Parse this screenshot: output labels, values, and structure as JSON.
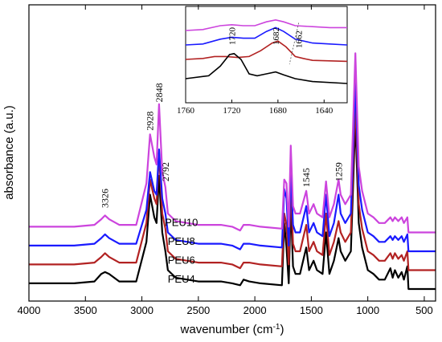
{
  "chart_data": {
    "type": "line",
    "title": "",
    "xlabel": "wavenumber (cm",
    "xlabel_sup": "-1",
    "xlabel_close": ")",
    "ylabel": "absorbance (a.u.)",
    "xlim": [
      4000,
      400
    ],
    "ylim": [
      0,
      100
    ],
    "reversed_x": true,
    "x_ticks": [
      4000,
      3500,
      3000,
      2500,
      2000,
      1500,
      1000,
      500
    ],
    "grid": false,
    "series": [
      {
        "name": "PEU4",
        "color": "#000000",
        "offset": 0,
        "points": [
          [
            4000,
            3
          ],
          [
            3600,
            3
          ],
          [
            3420,
            4
          ],
          [
            3360,
            8
          ],
          [
            3326,
            9
          ],
          [
            3290,
            8
          ],
          [
            3200,
            4
          ],
          [
            3050,
            4
          ],
          [
            2960,
            25
          ],
          [
            2928,
            50
          ],
          [
            2890,
            38
          ],
          [
            2870,
            35
          ],
          [
            2848,
            60
          ],
          [
            2820,
            30
          ],
          [
            2792,
            20
          ],
          [
            2770,
            10
          ],
          [
            2700,
            6
          ],
          [
            2500,
            4
          ],
          [
            2300,
            4
          ],
          [
            2200,
            3
          ],
          [
            2130,
            2
          ],
          [
            2100,
            5
          ],
          [
            2050,
            4
          ],
          [
            1950,
            3
          ],
          [
            1760,
            2
          ],
          [
            1740,
            35
          ],
          [
            1720,
            22
          ],
          [
            1700,
            3
          ],
          [
            1682,
            46
          ],
          [
            1662,
            12
          ],
          [
            1640,
            8
          ],
          [
            1600,
            8
          ],
          [
            1545,
            22
          ],
          [
            1520,
            10
          ],
          [
            1480,
            15
          ],
          [
            1450,
            10
          ],
          [
            1400,
            8
          ],
          [
            1370,
            30
          ],
          [
            1340,
            8
          ],
          [
            1300,
            15
          ],
          [
            1259,
            27
          ],
          [
            1240,
            20
          ],
          [
            1200,
            15
          ],
          [
            1150,
            20
          ],
          [
            1110,
            90
          ],
          [
            1080,
            35
          ],
          [
            1050,
            22
          ],
          [
            1000,
            10
          ],
          [
            950,
            8
          ],
          [
            900,
            5
          ],
          [
            850,
            5
          ],
          [
            800,
            11
          ],
          [
            780,
            6
          ],
          [
            760,
            10
          ],
          [
            730,
            6
          ],
          [
            700,
            9
          ],
          [
            680,
            5
          ],
          [
            650,
            12
          ],
          [
            640,
            0
          ],
          [
            400,
            0
          ]
        ]
      },
      {
        "name": "PEU6",
        "color": "#b22222",
        "offset": 10,
        "points": [
          [
            4000,
            3
          ],
          [
            3600,
            3
          ],
          [
            3420,
            4
          ],
          [
            3360,
            7
          ],
          [
            3326,
            9
          ],
          [
            3290,
            7
          ],
          [
            3200,
            4
          ],
          [
            3050,
            4
          ],
          [
            2960,
            25
          ],
          [
            2928,
            48
          ],
          [
            2890,
            38
          ],
          [
            2870,
            35
          ],
          [
            2848,
            62
          ],
          [
            2820,
            30
          ],
          [
            2792,
            22
          ],
          [
            2770,
            10
          ],
          [
            2700,
            6
          ],
          [
            2500,
            4
          ],
          [
            2300,
            4
          ],
          [
            2200,
            3
          ],
          [
            2130,
            1
          ],
          [
            2100,
            4
          ],
          [
            2050,
            4
          ],
          [
            1950,
            3
          ],
          [
            1760,
            2
          ],
          [
            1740,
            30
          ],
          [
            1720,
            24
          ],
          [
            1700,
            3
          ],
          [
            1682,
            46
          ],
          [
            1662,
            14
          ],
          [
            1640,
            10
          ],
          [
            1600,
            10
          ],
          [
            1545,
            24
          ],
          [
            1520,
            10
          ],
          [
            1480,
            15
          ],
          [
            1450,
            10
          ],
          [
            1400,
            8
          ],
          [
            1370,
            30
          ],
          [
            1340,
            8
          ],
          [
            1300,
            15
          ],
          [
            1259,
            26
          ],
          [
            1240,
            20
          ],
          [
            1200,
            15
          ],
          [
            1150,
            20
          ],
          [
            1110,
            90
          ],
          [
            1080,
            35
          ],
          [
            1050,
            22
          ],
          [
            1000,
            10
          ],
          [
            950,
            8
          ],
          [
            900,
            5
          ],
          [
            850,
            5
          ],
          [
            800,
            9
          ],
          [
            780,
            6
          ],
          [
            760,
            9
          ],
          [
            730,
            6
          ],
          [
            700,
            8
          ],
          [
            680,
            5
          ],
          [
            650,
            10
          ],
          [
            640,
            0
          ],
          [
            400,
            0
          ]
        ]
      },
      {
        "name": "PEU8",
        "color": "#1a1aff",
        "offset": 20,
        "points": [
          [
            4000,
            3
          ],
          [
            3600,
            3
          ],
          [
            3420,
            4
          ],
          [
            3360,
            7
          ],
          [
            3326,
            9
          ],
          [
            3290,
            7
          ],
          [
            3200,
            4
          ],
          [
            3050,
            4
          ],
          [
            2960,
            22
          ],
          [
            2928,
            42
          ],
          [
            2890,
            32
          ],
          [
            2870,
            30
          ],
          [
            2848,
            54
          ],
          [
            2820,
            28
          ],
          [
            2792,
            20
          ],
          [
            2770,
            10
          ],
          [
            2700,
            6
          ],
          [
            2500,
            4
          ],
          [
            2300,
            4
          ],
          [
            2200,
            3
          ],
          [
            2130,
            1
          ],
          [
            2100,
            4
          ],
          [
            2050,
            4
          ],
          [
            1950,
            3
          ],
          [
            1760,
            2
          ],
          [
            1740,
            33
          ],
          [
            1720,
            28
          ],
          [
            1700,
            3
          ],
          [
            1682,
            44
          ],
          [
            1662,
            14
          ],
          [
            1640,
            10
          ],
          [
            1600,
            10
          ],
          [
            1545,
            24
          ],
          [
            1520,
            10
          ],
          [
            1480,
            15
          ],
          [
            1450,
            10
          ],
          [
            1400,
            8
          ],
          [
            1370,
            30
          ],
          [
            1340,
            8
          ],
          [
            1300,
            15
          ],
          [
            1259,
            30
          ],
          [
            1240,
            20
          ],
          [
            1200,
            15
          ],
          [
            1150,
            20
          ],
          [
            1110,
            90
          ],
          [
            1080,
            35
          ],
          [
            1050,
            22
          ],
          [
            1000,
            10
          ],
          [
            950,
            8
          ],
          [
            900,
            5
          ],
          [
            850,
            5
          ],
          [
            800,
            8
          ],
          [
            780,
            6
          ],
          [
            760,
            8
          ],
          [
            730,
            6
          ],
          [
            700,
            8
          ],
          [
            680,
            5
          ],
          [
            650,
            9
          ],
          [
            640,
            0
          ],
          [
            400,
            0
          ]
        ]
      },
      {
        "name": "PEU10",
        "color": "#cc44dd",
        "offset": 30,
        "points": [
          [
            4000,
            3
          ],
          [
            3600,
            3
          ],
          [
            3420,
            4
          ],
          [
            3360,
            7
          ],
          [
            3326,
            9
          ],
          [
            3290,
            7
          ],
          [
            3200,
            4
          ],
          [
            3050,
            4
          ],
          [
            2960,
            26
          ],
          [
            2928,
            52
          ],
          [
            2890,
            40
          ],
          [
            2870,
            36
          ],
          [
            2848,
            68
          ],
          [
            2820,
            32
          ],
          [
            2792,
            24
          ],
          [
            2770,
            10
          ],
          [
            2700,
            6
          ],
          [
            2500,
            4
          ],
          [
            2300,
            4
          ],
          [
            2200,
            3
          ],
          [
            2130,
            1
          ],
          [
            2100,
            4
          ],
          [
            2050,
            4
          ],
          [
            1950,
            3
          ],
          [
            1760,
            2
          ],
          [
            1740,
            28
          ],
          [
            1720,
            26
          ],
          [
            1700,
            3
          ],
          [
            1682,
            46
          ],
          [
            1662,
            14
          ],
          [
            1640,
            10
          ],
          [
            1600,
            10
          ],
          [
            1545,
            22
          ],
          [
            1520,
            10
          ],
          [
            1480,
            15
          ],
          [
            1450,
            10
          ],
          [
            1400,
            8
          ],
          [
            1370,
            27
          ],
          [
            1340,
            8
          ],
          [
            1300,
            15
          ],
          [
            1259,
            28
          ],
          [
            1240,
            20
          ],
          [
            1200,
            15
          ],
          [
            1150,
            20
          ],
          [
            1110,
            95
          ],
          [
            1080,
            35
          ],
          [
            1050,
            22
          ],
          [
            1000,
            10
          ],
          [
            950,
            8
          ],
          [
            900,
            5
          ],
          [
            850,
            5
          ],
          [
            800,
            8
          ],
          [
            780,
            6
          ],
          [
            760,
            8
          ],
          [
            730,
            6
          ],
          [
            700,
            8
          ],
          [
            680,
            5
          ],
          [
            650,
            8
          ],
          [
            640,
            0
          ],
          [
            400,
            0
          ]
        ]
      }
    ],
    "peak_labels": [
      {
        "text": "3326",
        "x": 3326,
        "y": 43
      },
      {
        "text": "2928",
        "x": 2928,
        "y": 84
      },
      {
        "text": "2848",
        "x": 2848,
        "y": 99
      },
      {
        "text": "2792",
        "x": 2792,
        "y": 57
      },
      {
        "text": "1545",
        "x": 1545,
        "y": 54
      },
      {
        "text": "1259",
        "x": 1259,
        "y": 57
      }
    ],
    "inset": {
      "xlim": [
        1760,
        1620
      ],
      "x_ticks": [
        1760,
        1720,
        1680,
        1640
      ],
      "peak_labels": [
        {
          "text": "1720",
          "x": 1720
        },
        {
          "text": "1682",
          "x": 1682
        },
        {
          "text": "1662",
          "x": 1662
        }
      ],
      "series": [
        {
          "name": "PEU10",
          "color": "#cc44dd",
          "points": [
            [
              1760,
              75
            ],
            [
              1745,
              76
            ],
            [
              1730,
              80
            ],
            [
              1720,
              81
            ],
            [
              1710,
              80
            ],
            [
              1700,
              80
            ],
            [
              1690,
              84
            ],
            [
              1682,
              86
            ],
            [
              1675,
              84
            ],
            [
              1665,
              80
            ],
            [
              1650,
              79
            ],
            [
              1635,
              78
            ],
            [
              1620,
              78
            ]
          ]
        },
        {
          "name": "PEU8",
          "color": "#1a1aff",
          "points": [
            [
              1760,
              60
            ],
            [
              1745,
              61
            ],
            [
              1730,
              66
            ],
            [
              1720,
              68
            ],
            [
              1710,
              67
            ],
            [
              1700,
              67
            ],
            [
              1690,
              74
            ],
            [
              1682,
              78
            ],
            [
              1675,
              74
            ],
            [
              1665,
              66
            ],
            [
              1650,
              62
            ],
            [
              1635,
              61
            ],
            [
              1620,
              60
            ]
          ]
        },
        {
          "name": "PEU6",
          "color": "#b22222",
          "points": [
            [
              1760,
              45
            ],
            [
              1745,
              46
            ],
            [
              1735,
              48
            ],
            [
              1725,
              48
            ],
            [
              1715,
              47
            ],
            [
              1705,
              48
            ],
            [
              1695,
              54
            ],
            [
              1685,
              62
            ],
            [
              1680,
              64
            ],
            [
              1673,
              58
            ],
            [
              1665,
              48
            ],
            [
              1658,
              46
            ],
            [
              1650,
              44
            ],
            [
              1620,
              43
            ]
          ]
        },
        {
          "name": "PEU4",
          "color": "#000000",
          "points": [
            [
              1760,
              25
            ],
            [
              1740,
              28
            ],
            [
              1730,
              38
            ],
            [
              1722,
              50
            ],
            [
              1718,
              51
            ],
            [
              1712,
              45
            ],
            [
              1705,
              30
            ],
            [
              1698,
              28
            ],
            [
              1690,
              30
            ],
            [
              1682,
              32
            ],
            [
              1675,
              29
            ],
            [
              1665,
              25
            ],
            [
              1650,
              22
            ],
            [
              1620,
              20
            ]
          ]
        }
      ]
    }
  }
}
